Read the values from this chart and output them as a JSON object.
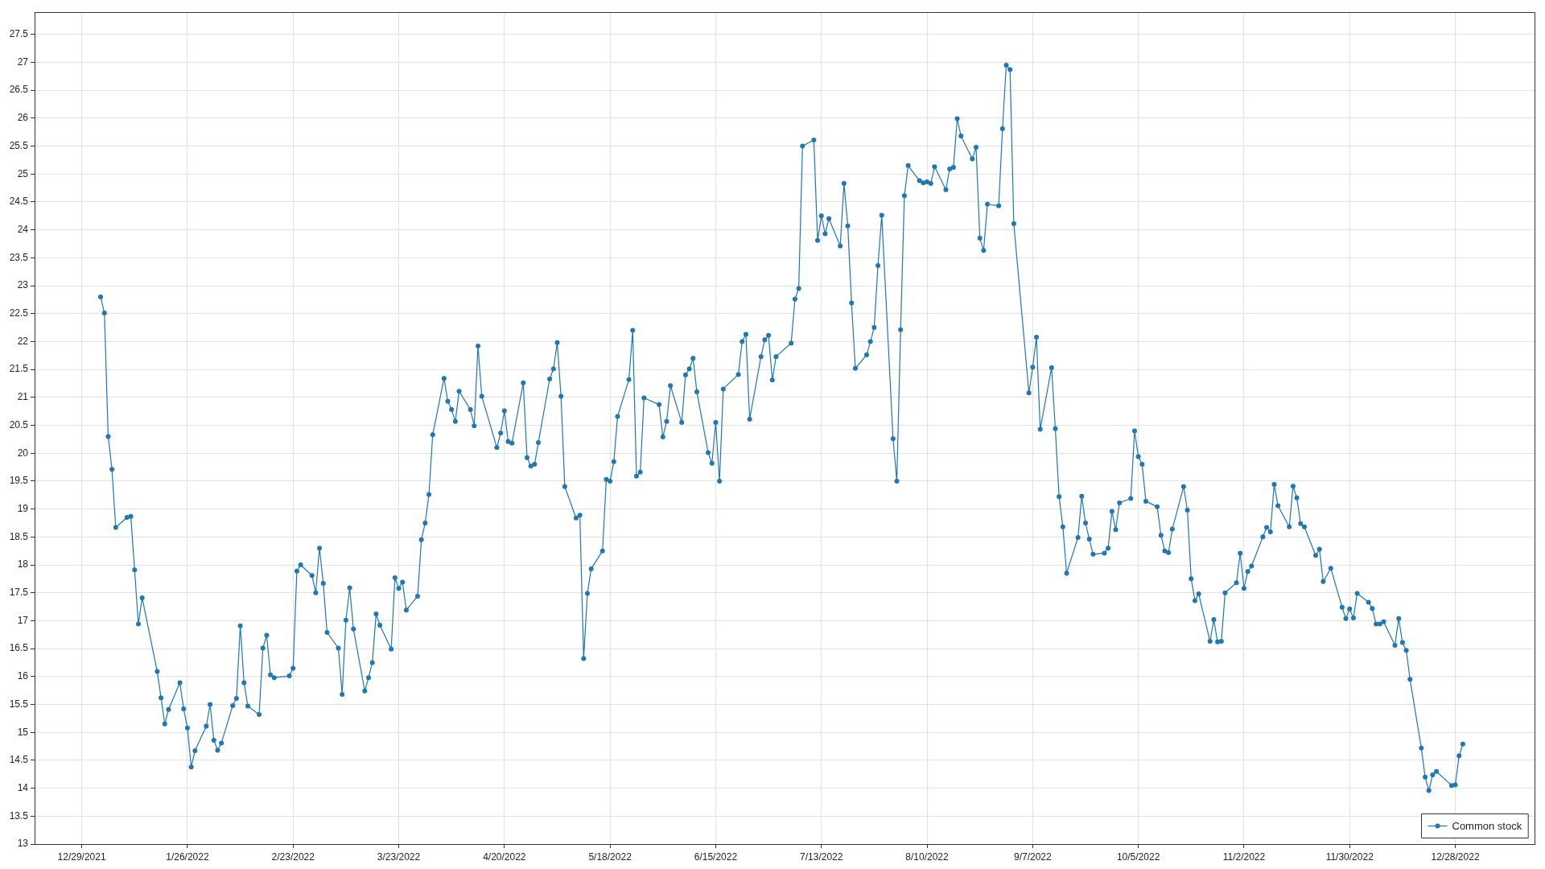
{
  "chart_data": {
    "type": "line",
    "x": [
      "2022-01-03",
      "2022-01-04",
      "2022-01-05",
      "2022-01-06",
      "2022-01-07",
      "2022-01-10",
      "2022-01-11",
      "2022-01-12",
      "2022-01-13",
      "2022-01-14",
      "2022-01-18",
      "2022-01-19",
      "2022-01-20",
      "2022-01-21",
      "2022-01-24",
      "2022-01-25",
      "2022-01-26",
      "2022-01-27",
      "2022-01-28",
      "2022-01-31",
      "2022-02-01",
      "2022-02-02",
      "2022-02-03",
      "2022-02-04",
      "2022-02-07",
      "2022-02-08",
      "2022-02-09",
      "2022-02-10",
      "2022-02-11",
      "2022-02-14",
      "2022-02-15",
      "2022-02-16",
      "2022-02-17",
      "2022-02-18",
      "2022-02-22",
      "2022-02-23",
      "2022-02-24",
      "2022-02-25",
      "2022-02-28",
      "2022-03-01",
      "2022-03-02",
      "2022-03-03",
      "2022-03-04",
      "2022-03-07",
      "2022-03-08",
      "2022-03-09",
      "2022-03-10",
      "2022-03-11",
      "2022-03-14",
      "2022-03-15",
      "2022-03-16",
      "2022-03-17",
      "2022-03-18",
      "2022-03-21",
      "2022-03-22",
      "2022-03-23",
      "2022-03-24",
      "2022-03-25",
      "2022-03-28",
      "2022-03-29",
      "2022-03-30",
      "2022-03-31",
      "2022-04-01",
      "2022-04-04",
      "2022-04-05",
      "2022-04-06",
      "2022-04-07",
      "2022-04-08",
      "2022-04-11",
      "2022-04-12",
      "2022-04-13",
      "2022-04-14",
      "2022-04-18",
      "2022-04-19",
      "2022-04-20",
      "2022-04-21",
      "2022-04-22",
      "2022-04-25",
      "2022-04-26",
      "2022-04-27",
      "2022-04-28",
      "2022-04-29",
      "2022-05-02",
      "2022-05-03",
      "2022-05-04",
      "2022-05-05",
      "2022-05-06",
      "2022-05-09",
      "2022-05-10",
      "2022-05-11",
      "2022-05-12",
      "2022-05-13",
      "2022-05-16",
      "2022-05-17",
      "2022-05-18",
      "2022-05-19",
      "2022-05-20",
      "2022-05-23",
      "2022-05-24",
      "2022-05-25",
      "2022-05-26",
      "2022-05-27",
      "2022-05-31",
      "2022-06-01",
      "2022-06-02",
      "2022-06-03",
      "2022-06-06",
      "2022-06-07",
      "2022-06-08",
      "2022-06-09",
      "2022-06-10",
      "2022-06-13",
      "2022-06-14",
      "2022-06-15",
      "2022-06-16",
      "2022-06-17",
      "2022-06-21",
      "2022-06-22",
      "2022-06-23",
      "2022-06-24",
      "2022-06-27",
      "2022-06-28",
      "2022-06-29",
      "2022-06-30",
      "2022-07-01",
      "2022-07-05",
      "2022-07-06",
      "2022-07-07",
      "2022-07-08",
      "2022-07-11",
      "2022-07-12",
      "2022-07-13",
      "2022-07-14",
      "2022-07-15",
      "2022-07-18",
      "2022-07-19",
      "2022-07-20",
      "2022-07-21",
      "2022-07-22",
      "2022-07-25",
      "2022-07-26",
      "2022-07-27",
      "2022-07-28",
      "2022-07-29",
      "2022-08-01",
      "2022-08-02",
      "2022-08-03",
      "2022-08-04",
      "2022-08-05",
      "2022-08-08",
      "2022-08-09",
      "2022-08-10",
      "2022-08-11",
      "2022-08-12",
      "2022-08-15",
      "2022-08-16",
      "2022-08-17",
      "2022-08-18",
      "2022-08-19",
      "2022-08-22",
      "2022-08-23",
      "2022-08-24",
      "2022-08-25",
      "2022-08-26",
      "2022-08-29",
      "2022-08-30",
      "2022-08-31",
      "2022-09-01",
      "2022-09-02",
      "2022-09-06",
      "2022-09-07",
      "2022-09-08",
      "2022-09-09",
      "2022-09-12",
      "2022-09-13",
      "2022-09-14",
      "2022-09-15",
      "2022-09-16",
      "2022-09-19",
      "2022-09-20",
      "2022-09-21",
      "2022-09-22",
      "2022-09-23",
      "2022-09-26",
      "2022-09-27",
      "2022-09-28",
      "2022-09-29",
      "2022-09-30",
      "2022-10-03",
      "2022-10-04",
      "2022-10-05",
      "2022-10-06",
      "2022-10-07",
      "2022-10-10",
      "2022-10-11",
      "2022-10-12",
      "2022-10-13",
      "2022-10-14",
      "2022-10-17",
      "2022-10-18",
      "2022-10-19",
      "2022-10-20",
      "2022-10-21",
      "2022-10-24",
      "2022-10-25",
      "2022-10-26",
      "2022-10-27",
      "2022-10-28",
      "2022-10-31",
      "2022-11-01",
      "2022-11-02",
      "2022-11-03",
      "2022-11-04",
      "2022-11-07",
      "2022-11-08",
      "2022-11-09",
      "2022-11-10",
      "2022-11-11",
      "2022-11-14",
      "2022-11-15",
      "2022-11-16",
      "2022-11-17",
      "2022-11-18",
      "2022-11-21",
      "2022-11-22",
      "2022-11-23",
      "2022-11-25",
      "2022-11-28",
      "2022-11-29",
      "2022-11-30",
      "2022-12-01",
      "2022-12-02",
      "2022-12-05",
      "2022-12-06",
      "2022-12-07",
      "2022-12-08",
      "2022-12-09",
      "2022-12-12",
      "2022-12-13",
      "2022-12-14",
      "2022-12-15",
      "2022-12-16",
      "2022-12-19",
      "2022-12-20",
      "2022-12-21",
      "2022-12-22",
      "2022-12-23",
      "2022-12-27",
      "2022-12-28",
      "2022-12-29",
      "2022-12-30"
    ],
    "series": [
      {
        "name": "Common stock",
        "color": "#1f77b4",
        "values": [
          22.8,
          22.51,
          20.3,
          19.71,
          18.67,
          18.85,
          18.87,
          17.91,
          16.94,
          17.41,
          16.09,
          15.62,
          15.15,
          15.41,
          15.89,
          15.42,
          15.08,
          14.38,
          14.67,
          15.11,
          15.5,
          14.86,
          14.68,
          14.81,
          15.48,
          15.61,
          16.91,
          15.89,
          15.47,
          15.32,
          16.51,
          16.74,
          16.03,
          15.98,
          16.01,
          16.15,
          17.89,
          18.0,
          17.81,
          17.5,
          18.3,
          17.67,
          16.79,
          16.51,
          15.68,
          17.01,
          17.59,
          16.85,
          15.74,
          15.98,
          16.25,
          17.12,
          16.92,
          16.49,
          17.77,
          17.58,
          17.69,
          17.19,
          17.44,
          18.45,
          18.75,
          19.26,
          20.33,
          21.34,
          20.93,
          20.78,
          20.57,
          21.11,
          20.78,
          20.49,
          21.92,
          21.02,
          20.1,
          20.36,
          20.76,
          20.21,
          20.18,
          21.26,
          19.92,
          19.77,
          19.8,
          20.19,
          21.33,
          21.51,
          21.98,
          21.02,
          19.4,
          18.84,
          18.89,
          16.32,
          17.49,
          17.93,
          18.25,
          19.53,
          19.5,
          19.85,
          20.66,
          21.32,
          22.2,
          19.59,
          19.66,
          20.99,
          20.87,
          20.29,
          20.57,
          21.21,
          20.55,
          21.4,
          21.51,
          21.7,
          21.1,
          20.01,
          19.82,
          20.55,
          19.5,
          21.15,
          21.41,
          22.0,
          22.13,
          20.61,
          21.73,
          22.03,
          22.11,
          21.31,
          21.73,
          21.97,
          22.76,
          22.95,
          25.5,
          25.61,
          23.81,
          24.25,
          23.93,
          24.2,
          23.71,
          24.83,
          24.07,
          22.69,
          21.52,
          21.76,
          22.0,
          22.25,
          23.36,
          24.26,
          20.26,
          19.5,
          22.21,
          24.61,
          25.15,
          24.88,
          24.84,
          24.86,
          24.83,
          25.13,
          24.72,
          25.09,
          25.12,
          25.99,
          25.68,
          25.27,
          25.48,
          23.85,
          23.63,
          24.46,
          24.43,
          25.81,
          26.95,
          26.87,
          24.11,
          21.08,
          21.54,
          22.08,
          20.43,
          21.53,
          20.44,
          19.22,
          18.68,
          17.85,
          18.49,
          19.23,
          18.75,
          18.46,
          18.19,
          18.21,
          18.3,
          18.96,
          18.63,
          19.11,
          19.19,
          20.4,
          19.94,
          19.8,
          19.14,
          19.04,
          18.53,
          18.25,
          18.22,
          18.64,
          19.4,
          18.98,
          17.75,
          17.36,
          17.48,
          16.63,
          17.02,
          16.62,
          16.63,
          17.5,
          17.68,
          18.21,
          17.58,
          17.88,
          17.98,
          18.5,
          18.67,
          18.59,
          19.44,
          19.06,
          18.68,
          19.41,
          19.2,
          18.74,
          18.68,
          18.17,
          18.28,
          17.7,
          17.94,
          17.24,
          17.04,
          17.21,
          17.05,
          17.49,
          17.33,
          17.22,
          16.94,
          16.94,
          16.98,
          16.56,
          17.04,
          16.61,
          16.47,
          15.95,
          14.72,
          14.2,
          13.96,
          14.24,
          14.3,
          14.05,
          14.06,
          14.58,
          14.79
        ]
      }
    ],
    "xlim": [
      "2021-12-16T12:00",
      "2023-01-18"
    ],
    "xticks": [
      {
        "value": "2021-12-29",
        "label": "12/29/2021"
      },
      {
        "value": "2022-01-26",
        "label": "1/26/2022"
      },
      {
        "value": "2022-02-23",
        "label": "2/23/2022"
      },
      {
        "value": "2022-03-23",
        "label": "3/23/2022"
      },
      {
        "value": "2022-04-20",
        "label": "4/20/2022"
      },
      {
        "value": "2022-05-18",
        "label": "5/18/2022"
      },
      {
        "value": "2022-06-15",
        "label": "6/15/2022"
      },
      {
        "value": "2022-07-13",
        "label": "7/13/2022"
      },
      {
        "value": "2022-08-10",
        "label": "8/10/2022"
      },
      {
        "value": "2022-09-07",
        "label": "9/7/2022"
      },
      {
        "value": "2022-10-05",
        "label": "10/5/2022"
      },
      {
        "value": "2022-11-02",
        "label": "11/2/2022"
      },
      {
        "value": "2022-11-30",
        "label": "11/30/2022"
      },
      {
        "value": "2022-12-28",
        "label": "12/28/2022"
      }
    ],
    "ylim": [
      13,
      27.9
    ],
    "yticks": [
      13,
      13.5,
      14,
      14.5,
      15,
      15.5,
      16,
      16.5,
      17,
      17.5,
      18,
      18.5,
      19,
      19.5,
      20,
      20.5,
      21,
      21.5,
      22,
      22.5,
      23,
      23.5,
      24,
      24.5,
      25,
      25.5,
      26,
      26.5,
      27,
      27.5
    ],
    "grid": true,
    "legend": "bottom right",
    "marker": "circle",
    "line_style": "solid"
  }
}
